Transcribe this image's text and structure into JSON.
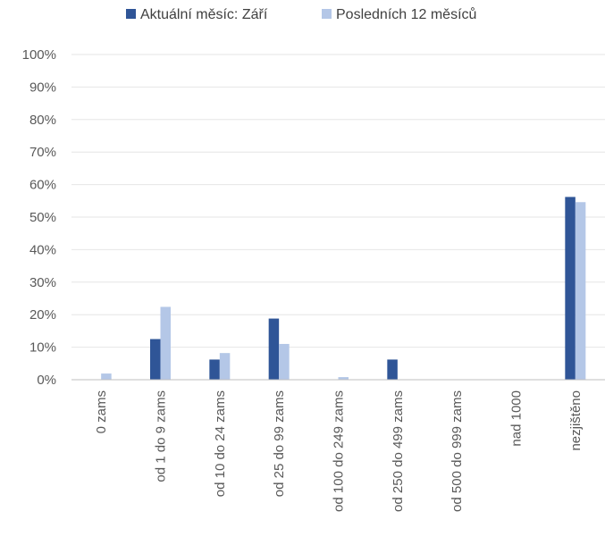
{
  "chart_data": {
    "type": "bar",
    "categories": [
      "0 zams",
      "od 1 do 9 zams",
      "od 10 do 24 zams",
      "od 25 do 99 zams",
      "od 100 do 249 zams",
      "od 250 do 499 zams",
      "od 500 do 999 zams",
      "nad 1000",
      "nezjištěno"
    ],
    "series": [
      {
        "name": "Aktuální měsíc: Září",
        "color": "#2f5597",
        "values": [
          0,
          12.5,
          6.2,
          18.8,
          0,
          6.2,
          0,
          0,
          56.2
        ]
      },
      {
        "name": "Posledních 12 měsíců",
        "color": "#b4c7e7",
        "values": [
          1.9,
          22.4,
          8.2,
          11.0,
          0.8,
          0,
          0,
          0,
          54.6
        ]
      }
    ],
    "y_ticks": [
      "0%",
      "10%",
      "20%",
      "30%",
      "40%",
      "50%",
      "60%",
      "70%",
      "80%",
      "90%",
      "100%"
    ],
    "ylim": [
      0,
      100
    ],
    "grid": true,
    "legend_position": "top-center"
  }
}
